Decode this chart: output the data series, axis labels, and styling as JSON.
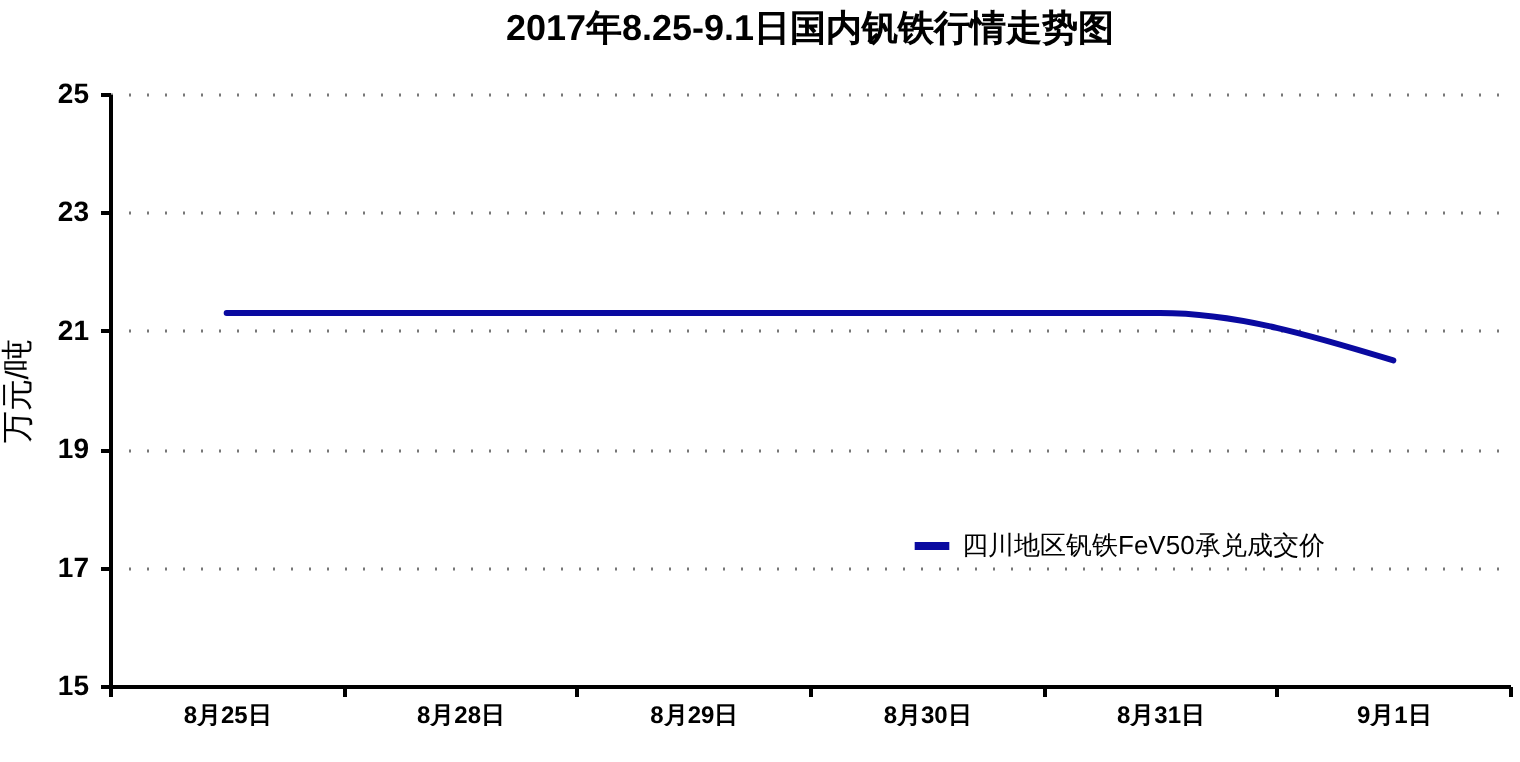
{
  "chart_data": {
    "type": "line",
    "title": "2017年8.25-9.1日国内钒铁行情走势图",
    "ylabel": "万元/吨",
    "categories": [
      "8月25日",
      "8月28日",
      "8月29日",
      "8月30日",
      "8月31日",
      "9月1日"
    ],
    "series": [
      {
        "name": "四川地区钒铁FeV50承兑成交价",
        "color": "#0a0aa0",
        "values": [
          21.3,
          21.3,
          21.3,
          21.3,
          21.3,
          20.5
        ]
      }
    ],
    "ylim": [
      15,
      25
    ],
    "yticks": [
      15,
      17,
      19,
      21,
      23,
      25
    ],
    "grid": "y",
    "legend": "bottom right",
    "marker": "none"
  }
}
